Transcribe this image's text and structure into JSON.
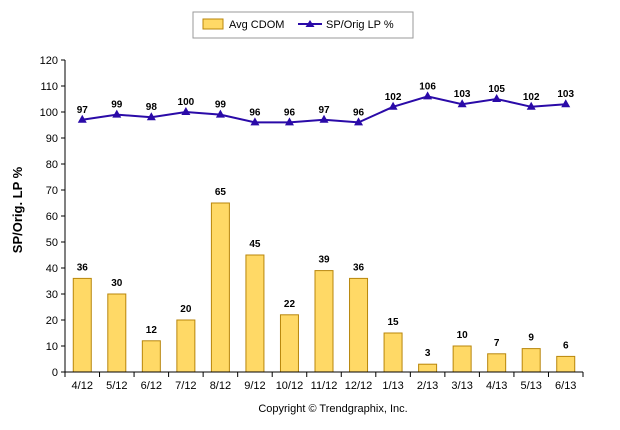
{
  "chart_data": {
    "type": "bar+line",
    "categories": [
      "4/12",
      "5/12",
      "6/12",
      "7/12",
      "8/12",
      "9/12",
      "10/12",
      "11/12",
      "12/12",
      "1/13",
      "2/13",
      "3/13",
      "4/13",
      "5/13",
      "6/13"
    ],
    "series": [
      {
        "name": "Avg CDOM",
        "type": "bar",
        "color": "#ffd966",
        "values": [
          36,
          30,
          12,
          20,
          65,
          45,
          22,
          39,
          36,
          15,
          3,
          10,
          7,
          9,
          6
        ]
      },
      {
        "name": "SP/Orig LP %",
        "type": "line",
        "color": "#2a0aa8",
        "values": [
          97,
          99,
          98,
          100,
          99,
          96,
          96,
          97,
          96,
          102,
          106,
          103,
          105,
          102,
          103
        ]
      }
    ],
    "ylabel": "SP/Orig. LP %",
    "ylim": [
      0,
      120
    ],
    "yticks": [
      0,
      10,
      20,
      30,
      40,
      50,
      60,
      70,
      80,
      90,
      100,
      110,
      120
    ],
    "grid": false,
    "legend_position": "top-center"
  },
  "footer": {
    "copyright": "Copyright © Trendgraphix, Inc."
  }
}
